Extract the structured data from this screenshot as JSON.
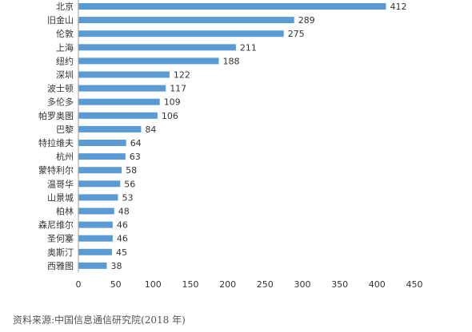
{
  "chart_data": {
    "type": "bar",
    "orientation": "horizontal",
    "categories": [
      "北京",
      "旧金山",
      "伦敦",
      "上海",
      "纽约",
      "深圳",
      "波士顿",
      "多伦多",
      "帕罗奥图",
      "巴黎",
      "特拉维夫",
      "杭州",
      "蒙特利尔",
      "温哥华",
      "山景城",
      "柏林",
      "森尼维尔",
      "圣何塞",
      "奥斯汀",
      "西雅图"
    ],
    "values": [
      412,
      289,
      275,
      211,
      188,
      122,
      117,
      109,
      106,
      84,
      64,
      63,
      58,
      56,
      53,
      48,
      46,
      46,
      45,
      38
    ],
    "xlim": [
      0,
      450
    ],
    "xticks": [
      0,
      50,
      100,
      150,
      200,
      250,
      300,
      350,
      400,
      450
    ],
    "grid": false,
    "colors": {
      "bar": "#5b9bd5",
      "axis": "#999999",
      "text": "#333333"
    }
  },
  "source_text": "资料来源:中国信息通信研究院(2018 年)"
}
